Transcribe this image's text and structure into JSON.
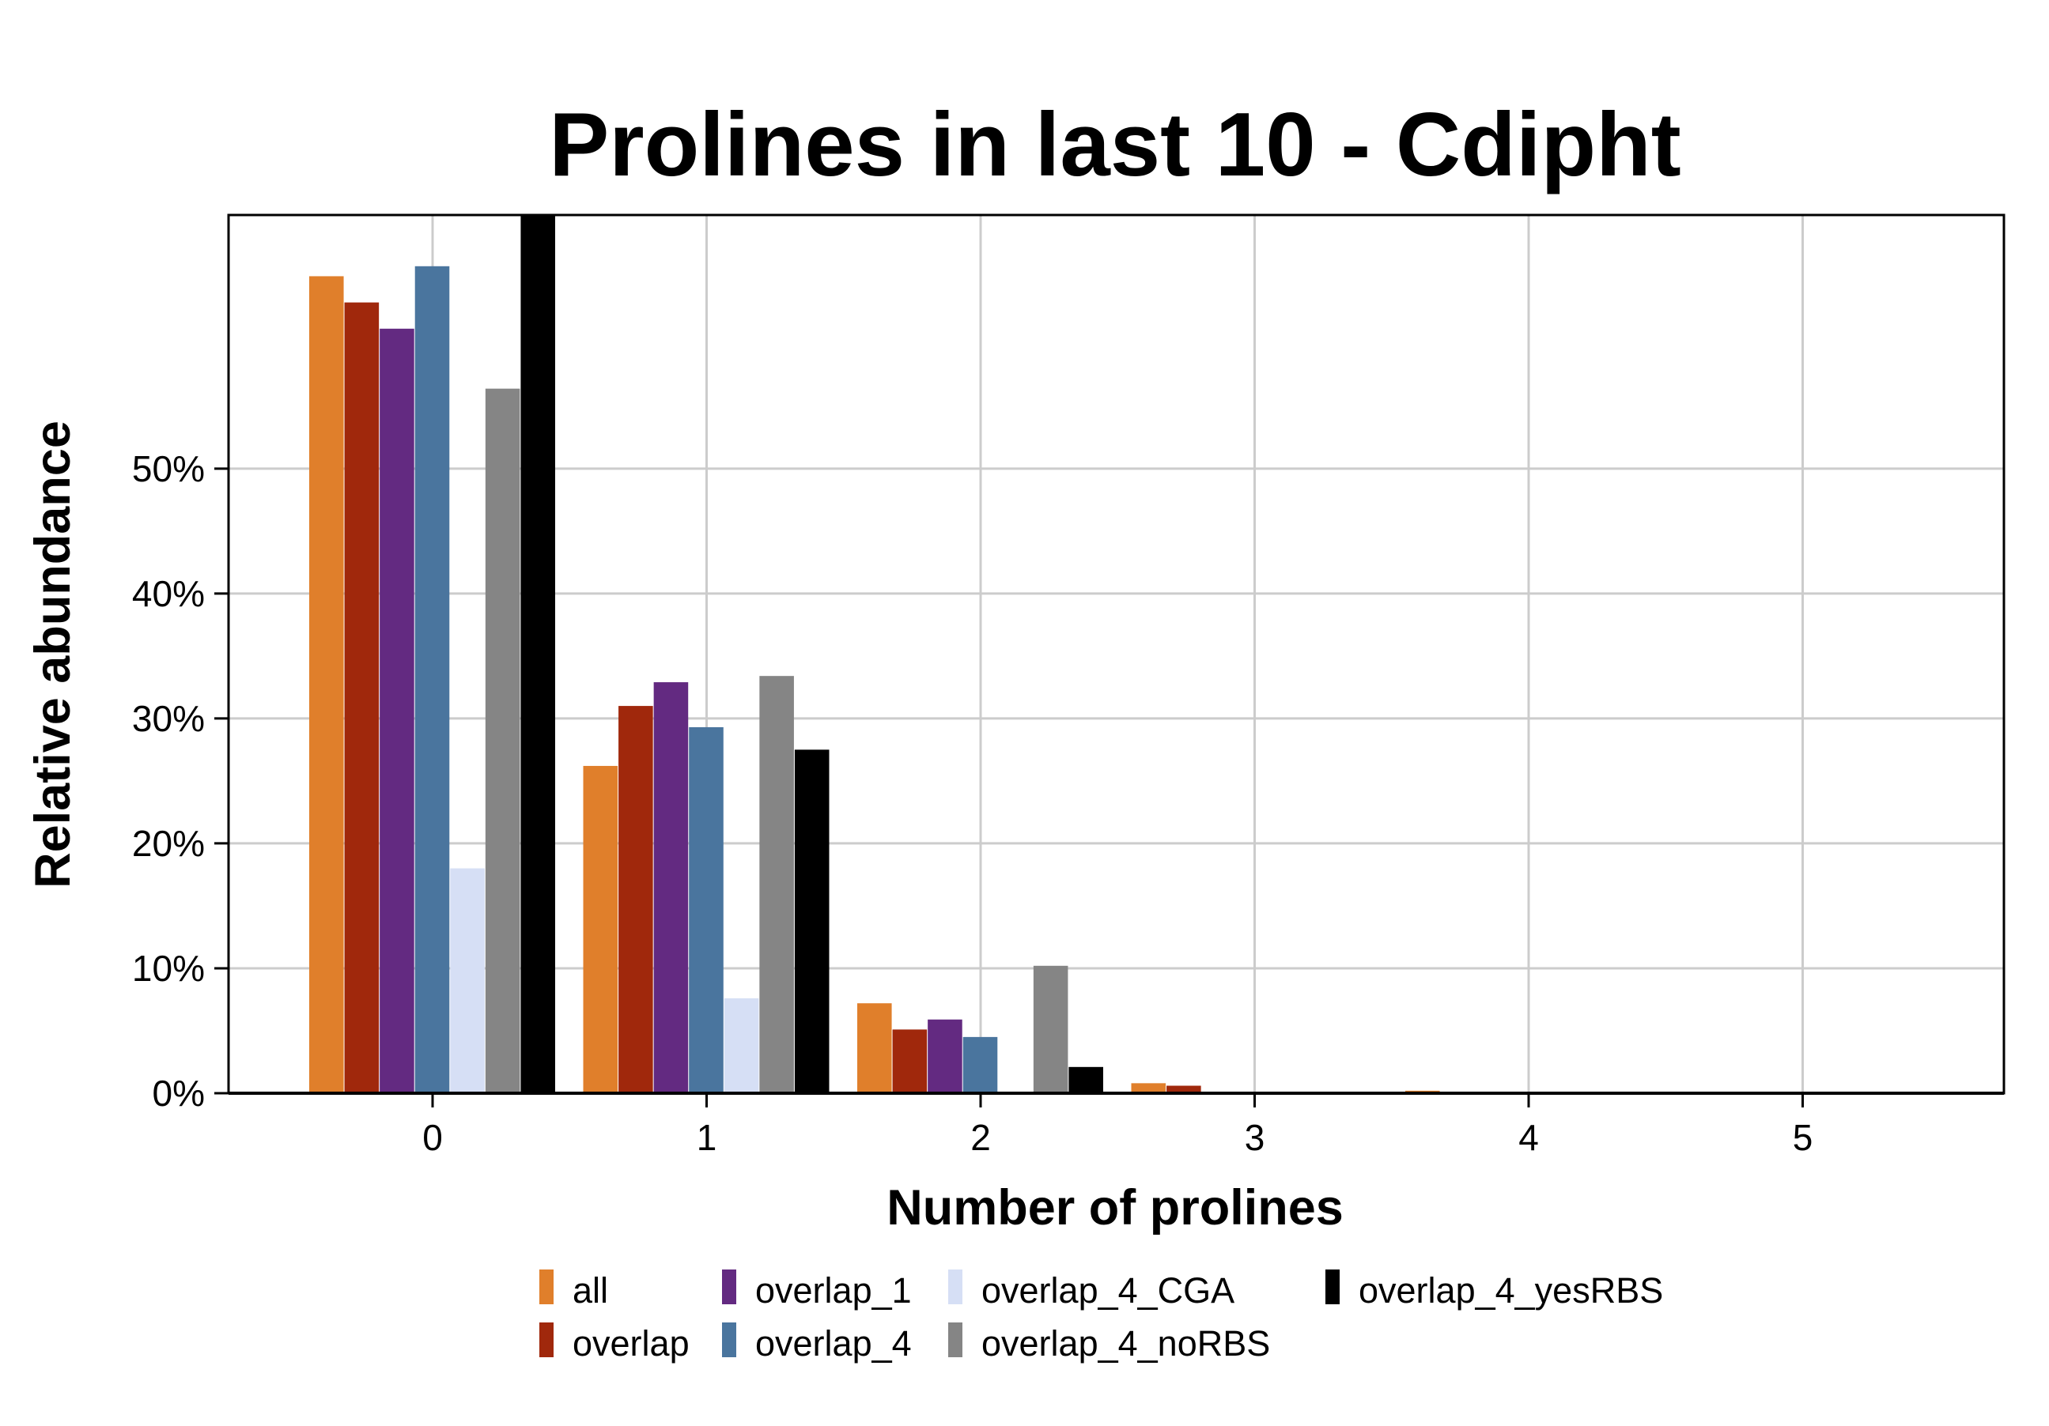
{
  "chart_data": {
    "type": "bar",
    "title": "Prolines in last 10 - Cdipht",
    "xlabel": "Number of prolines",
    "ylabel": "Relative abundance",
    "categories": [
      "0",
      "1",
      "2",
      "3",
      "4",
      "5"
    ],
    "ylim": [
      0,
      70.3
    ],
    "yticks": [
      0,
      10,
      20,
      30,
      40,
      50
    ],
    "ytick_labels": [
      "0%",
      "10%",
      "20%",
      "30%",
      "40%",
      "50%"
    ],
    "grid": true,
    "legend_position": "bottom",
    "series": [
      {
        "name": "all",
        "color": "#E07F2B",
        "values": [
          65.4,
          26.2,
          7.2,
          0.8,
          0.2,
          0.05
        ]
      },
      {
        "name": "overlap",
        "color": "#A0280C",
        "values": [
          63.3,
          31.0,
          5.1,
          0.6,
          0.1,
          0
        ]
      },
      {
        "name": "overlap_1",
        "color": "#632A81",
        "values": [
          61.2,
          32.9,
          5.9,
          0,
          0,
          0
        ]
      },
      {
        "name": "overlap_4",
        "color": "#4A759E",
        "values": [
          66.2,
          29.3,
          4.5,
          0,
          0,
          0
        ]
      },
      {
        "name": "overlap_4_CGA",
        "color": "#D6DFF5",
        "values": [
          18.0,
          7.6,
          0,
          0,
          0,
          0
        ]
      },
      {
        "name": "overlap_4_noRBS",
        "color": "#858585",
        "values": [
          56.4,
          33.4,
          10.2,
          0,
          0,
          0
        ]
      },
      {
        "name": "overlap_4_yesRBS",
        "color": "#000000",
        "values": [
          70.3,
          27.5,
          2.1,
          0,
          0,
          0
        ]
      }
    ]
  }
}
